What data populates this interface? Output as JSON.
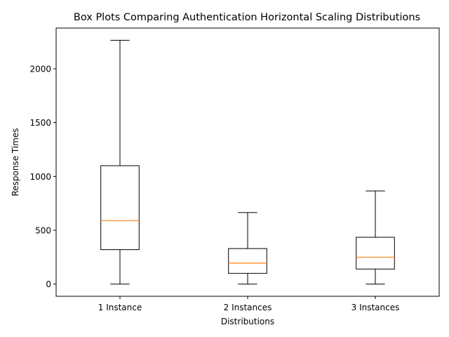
{
  "chart_data": {
    "type": "box",
    "title": "Box Plots Comparing Authentication Horizontal Scaling Distributions",
    "xlabel": "Distributions",
    "ylabel": "Response Times",
    "categories": [
      "1 Instance",
      "2 Instances",
      "3 Instances"
    ],
    "boxes": [
      {
        "label": "1 Instance",
        "whisker_low": 0,
        "q1": 320,
        "median": 590,
        "q3": 1100,
        "whisker_high": 2265
      },
      {
        "label": "2 Instances",
        "whisker_low": 0,
        "q1": 100,
        "median": 195,
        "q3": 330,
        "whisker_high": 665
      },
      {
        "label": "3 Instances",
        "whisker_low": 0,
        "q1": 140,
        "median": 250,
        "q3": 435,
        "whisker_high": 865
      }
    ],
    "yticks": [
      0,
      500,
      1000,
      1500,
      2000
    ],
    "ylim": [
      -113,
      2378
    ],
    "grid": false,
    "colors": {
      "box": "#000000",
      "median": "#ff7f0e",
      "background": "#ffffff"
    }
  }
}
